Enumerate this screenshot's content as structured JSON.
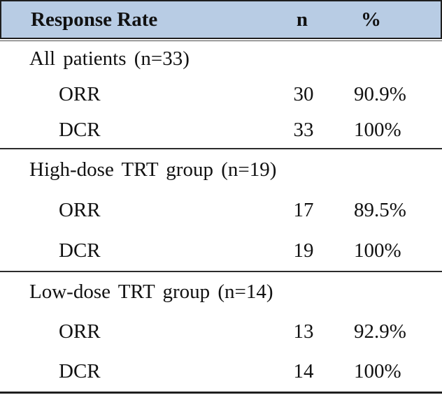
{
  "table": {
    "header": {
      "col_label": "Response Rate",
      "col_n": "n",
      "col_pct": "%"
    },
    "sections": [
      {
        "title": "All patients (n=33)",
        "rows": [
          {
            "label": "ORR",
            "n": "30",
            "pct": "90.9%"
          },
          {
            "label": "DCR",
            "n": "33",
            "pct": "100%"
          }
        ]
      },
      {
        "title": "High-dose TRT group (n=19)",
        "rows": [
          {
            "label": "ORR",
            "n": "17",
            "pct": "89.5%"
          },
          {
            "label": "DCR",
            "n": "19",
            "pct": "100%"
          }
        ]
      },
      {
        "title": "Low-dose TRT group (n=14)",
        "rows": [
          {
            "label": "ORR",
            "n": "13",
            "pct": "92.9%"
          },
          {
            "label": "DCR",
            "n": "14",
            "pct": "100%"
          }
        ]
      }
    ],
    "colors": {
      "header_bg": "#b8cce4",
      "border": "#1f1f1f",
      "text": "#111111"
    }
  },
  "chart_data": {
    "type": "table",
    "title": "Response Rate",
    "columns": [
      "Response Rate",
      "n",
      "%"
    ],
    "rows": [
      [
        "All patients (n=33)",
        "",
        ""
      ],
      [
        "ORR",
        30,
        "90.9%"
      ],
      [
        "DCR",
        33,
        "100%"
      ],
      [
        "High-dose TRT group (n=19)",
        "",
        ""
      ],
      [
        "ORR",
        17,
        "89.5%"
      ],
      [
        "DCR",
        19,
        "100%"
      ],
      [
        "Low-dose TRT group (n=14)",
        "",
        ""
      ],
      [
        "ORR",
        13,
        "92.9%"
      ],
      [
        "DCR",
        14,
        "100%"
      ]
    ]
  }
}
